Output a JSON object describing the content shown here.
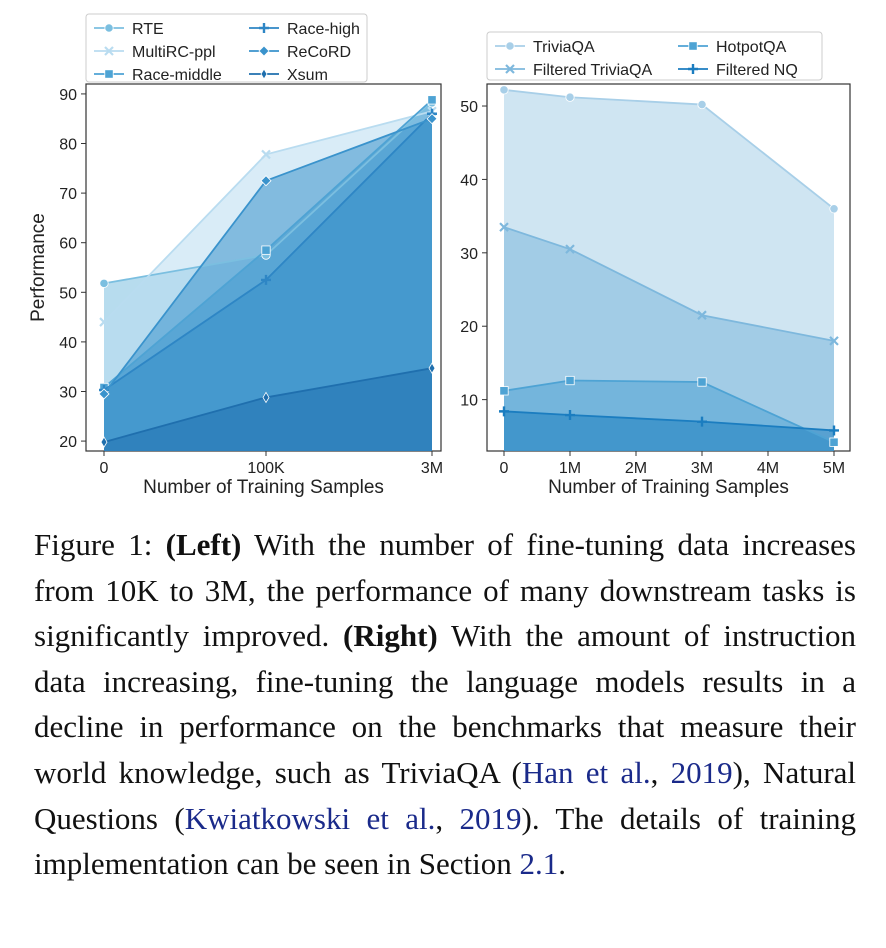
{
  "chart_data": [
    {
      "type": "area",
      "xlabel": "Number of Training Samples",
      "ylabel": "Performance",
      "x_ticks": [
        "0",
        "100K",
        "3M"
      ],
      "ylim": [
        18,
        92
      ],
      "y_ticks": [
        20,
        30,
        40,
        50,
        60,
        70,
        80,
        90
      ],
      "grid": false,
      "legend_position": "top-left, above plot",
      "series": [
        {
          "name": "RTE",
          "marker": "circle",
          "color": "#7bbfe0",
          "values": [
            51.8,
            57.5,
            88.2
          ]
        },
        {
          "name": "MultiRC-ppl",
          "marker": "x",
          "color": "#b9dcf0",
          "values": [
            44.0,
            77.8,
            86.5
          ]
        },
        {
          "name": "Race-middle",
          "marker": "square",
          "color": "#4ea3d4",
          "values": [
            30.8,
            58.5,
            88.8
          ]
        },
        {
          "name": "Race-high",
          "marker": "plus",
          "color": "#2e86c5",
          "values": [
            30.3,
            52.5,
            86.0
          ]
        },
        {
          "name": "ReCoRD",
          "marker": "diamond",
          "color": "#3a93cc",
          "values": [
            29.5,
            72.5,
            85.0
          ]
        },
        {
          "name": "Xsum",
          "marker": "thin-diamond",
          "color": "#1f6fae",
          "values": [
            19.8,
            28.8,
            34.7
          ]
        }
      ]
    },
    {
      "type": "area",
      "xlabel": "Number of Training Samples",
      "ylabel": "",
      "x_ticks": [
        "0",
        "1M",
        "2M",
        "3M",
        "4M",
        "5M"
      ],
      "x": [
        0,
        1,
        3,
        5
      ],
      "ylim": [
        3,
        53
      ],
      "y_ticks": [
        10,
        20,
        30,
        40,
        50
      ],
      "grid": false,
      "legend_position": "top, above plot",
      "series": [
        {
          "name": "TriviaQA",
          "marker": "circle",
          "color": "#a8cfe8",
          "values": [
            52.2,
            51.2,
            50.2,
            36.0
          ]
        },
        {
          "name": "Filtered TriviaQA",
          "marker": "x",
          "color": "#7eb8dd",
          "values": [
            33.5,
            30.5,
            21.5,
            18.0
          ]
        },
        {
          "name": "HotpotQA",
          "marker": "square",
          "color": "#4ea3d4",
          "values": [
            11.2,
            12.6,
            12.4,
            4.2
          ]
        },
        {
          "name": "Filtered NQ",
          "marker": "plus",
          "color": "#1b7dc0",
          "values": [
            8.4,
            7.9,
            7.0,
            5.8
          ]
        }
      ]
    }
  ],
  "caption": {
    "figure_label": "Figure 1:",
    "left_label": "(Left)",
    "left_text": "With the number of fine-tuning data increases from 10K to 3M, the performance of many downstream tasks is significantly improved.",
    "right_label": "(Right)",
    "right_text_1": "With the amount of instruction data increasing, fine-tuning the language models results in a decline in performance on the benchmarks that measure their world knowledge, such as TriviaQA (",
    "cite_1": "Han et al.",
    "cite_1_year": "2019",
    "right_text_2": "), Natural Questions (",
    "cite_2": "Kwiatkowski et al.",
    "cite_2_year": "2019",
    "right_text_3": "). The details of training implementation can be seen in Section ",
    "section_ref": "2.1",
    "end": "."
  }
}
